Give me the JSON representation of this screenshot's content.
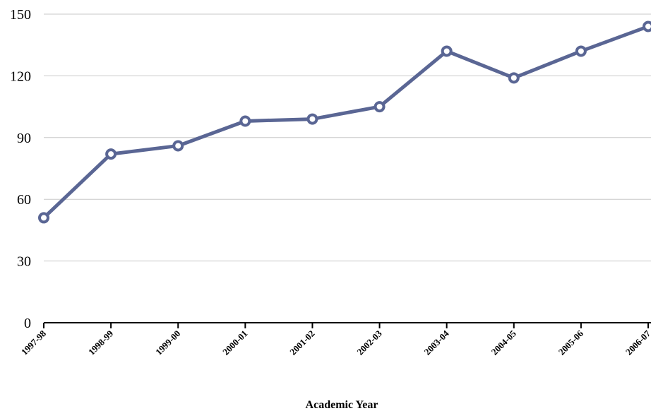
{
  "chart_data": {
    "type": "line",
    "title": "",
    "xlabel": "Academic Year",
    "ylabel": "",
    "categories": [
      "1997-98",
      "1998-99",
      "1999-00",
      "2000-01",
      "2001-02",
      "2002-03",
      "2003-04",
      "2004-05",
      "2005-06",
      "2006-07"
    ],
    "series": [
      {
        "values": [
          51,
          82,
          86,
          98,
          99,
          105,
          132,
          119,
          132,
          144
        ]
      }
    ],
    "ylim": [
      0,
      150
    ],
    "yticks": [
      0,
      30,
      60,
      90,
      120,
      150
    ],
    "grid": true,
    "legend": "none",
    "line_color": "#5a6694",
    "grid_color": "#c8c8c8",
    "marker": "open-circle"
  }
}
